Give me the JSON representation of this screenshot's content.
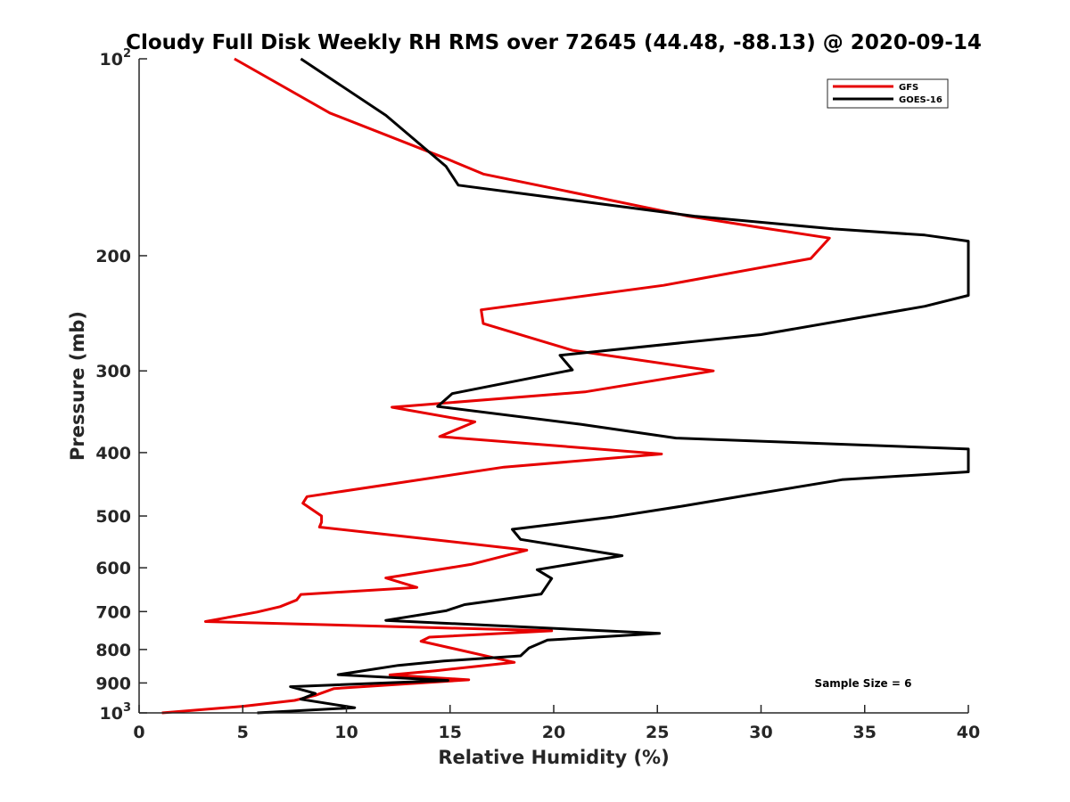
{
  "chart_data": {
    "type": "line",
    "title": "Cloudy Full Disk Weekly RH RMS over 72645 (44.48, -88.13) @ 2020-09-14",
    "xlabel": "Relative Humidity (%)",
    "ylabel": "Pressure (mb)",
    "xlim": [
      0,
      40
    ],
    "ylim": [
      100,
      1000
    ],
    "y_scale": "log",
    "y_reversed": true,
    "x_ticks": [
      "0",
      "5",
      "10",
      "15",
      "20",
      "25",
      "30",
      "35",
      "40"
    ],
    "y_ticks": [
      {
        "value": 100,
        "label": "10",
        "sup": "2"
      },
      {
        "value": 200,
        "label": "200",
        "sup": ""
      },
      {
        "value": 300,
        "label": "300",
        "sup": ""
      },
      {
        "value": 400,
        "label": "400",
        "sup": ""
      },
      {
        "value": 500,
        "label": "500",
        "sup": ""
      },
      {
        "value": 600,
        "label": "600",
        "sup": ""
      },
      {
        "value": 700,
        "label": "700",
        "sup": ""
      },
      {
        "value": 800,
        "label": "800",
        "sup": ""
      },
      {
        "value": 900,
        "label": "900",
        "sup": ""
      },
      {
        "value": 1000,
        "label": "10",
        "sup": "3"
      }
    ],
    "grid": false,
    "legend_position": "top-right",
    "annotation": "Sample Size = 6",
    "series": [
      {
        "name": "GFS",
        "color": "#e60000",
        "points": [
          [
            4.6,
            100
          ],
          [
            9.2,
            121
          ],
          [
            14.8,
            142
          ],
          [
            16.6,
            150
          ],
          [
            26.5,
            174
          ],
          [
            29.9,
            181
          ],
          [
            33.3,
            188
          ],
          [
            32.4,
            202
          ],
          [
            25.3,
            222
          ],
          [
            16.5,
            242
          ],
          [
            16.6,
            254
          ],
          [
            20.9,
            279
          ],
          [
            27.7,
            300
          ],
          [
            21.5,
            323
          ],
          [
            12.2,
            341
          ],
          [
            16.2,
            359
          ],
          [
            14.5,
            378
          ],
          [
            25.2,
            402
          ],
          [
            17.6,
            421
          ],
          [
            8.1,
            467
          ],
          [
            7.9,
            478
          ],
          [
            8.8,
            500
          ],
          [
            8.8,
            511
          ],
          [
            8.7,
            520
          ],
          [
            14.8,
            546
          ],
          [
            18.7,
            564
          ],
          [
            16.0,
            593
          ],
          [
            11.9,
            622
          ],
          [
            13.4,
            643
          ],
          [
            7.8,
            659
          ],
          [
            7.6,
            672
          ],
          [
            6.8,
            688
          ],
          [
            5.7,
            701
          ],
          [
            3.2,
            725
          ],
          [
            19.9,
            749
          ],
          [
            14.0,
            766
          ],
          [
            13.6,
            777
          ],
          [
            18.1,
            837
          ],
          [
            14.3,
            862
          ],
          [
            12.1,
            875
          ],
          [
            15.9,
            890
          ],
          [
            9.4,
            918
          ],
          [
            8.5,
            940
          ],
          [
            7.5,
            957
          ],
          [
            5.0,
            977
          ],
          [
            1.1,
            1000
          ]
        ]
      },
      {
        "name": "GOES-16",
        "color": "#000000",
        "points": [
          [
            7.8,
            100
          ],
          [
            11.9,
            122
          ],
          [
            14.8,
            146
          ],
          [
            15.4,
            156
          ],
          [
            26.8,
            174
          ],
          [
            33.5,
            182
          ],
          [
            37.9,
            186
          ],
          [
            40.0,
            190
          ],
          [
            40.0,
            230
          ],
          [
            37.9,
            239
          ],
          [
            30.0,
            264
          ],
          [
            20.3,
            284
          ],
          [
            20.9,
            299
          ],
          [
            15.1,
            325
          ],
          [
            14.4,
            340
          ],
          [
            21.3,
            362
          ],
          [
            25.9,
            380
          ],
          [
            40.0,
            395
          ],
          [
            40.0,
            428
          ],
          [
            33.9,
            440
          ],
          [
            29.3,
            465
          ],
          [
            26.2,
            483
          ],
          [
            22.8,
            502
          ],
          [
            18.0,
            524
          ],
          [
            18.4,
            543
          ],
          [
            23.3,
            575
          ],
          [
            19.2,
            604
          ],
          [
            19.9,
            623
          ],
          [
            19.4,
            658
          ],
          [
            15.7,
            683
          ],
          [
            14.8,
            698
          ],
          [
            11.9,
            722
          ],
          [
            25.1,
            756
          ],
          [
            19.7,
            774
          ],
          [
            18.8,
            796
          ],
          [
            18.4,
            818
          ],
          [
            14.7,
            833
          ],
          [
            12.5,
            846
          ],
          [
            9.6,
            874
          ],
          [
            14.9,
            892
          ],
          [
            7.3,
            912
          ],
          [
            8.5,
            934
          ],
          [
            7.8,
            953
          ],
          [
            10.4,
            982
          ],
          [
            5.7,
            1000
          ]
        ]
      }
    ]
  }
}
